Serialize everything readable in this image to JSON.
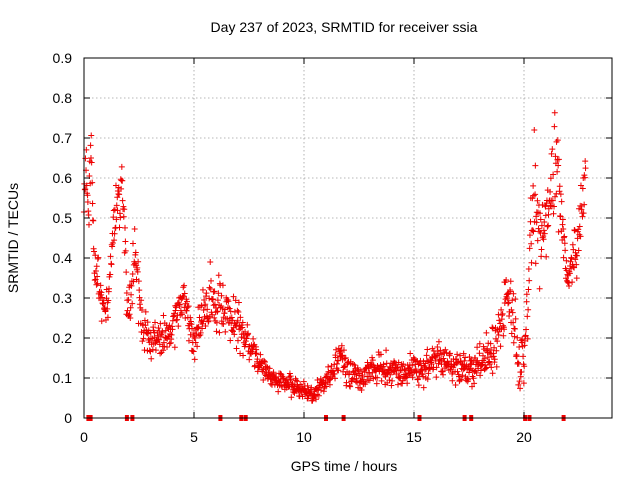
{
  "chart_data": {
    "type": "scatter",
    "title": "Day 237 of 2023, SRMTID for receiver ssia",
    "xlabel": "GPS time / hours",
    "ylabel": "SRMTID / TECUs",
    "xlim": [
      0,
      24
    ],
    "ylim": [
      0,
      0.9
    ],
    "xticks": [
      0,
      5,
      10,
      15,
      20
    ],
    "xtick_labels": [
      "0",
      "5",
      "10",
      "15",
      "20"
    ],
    "yticks": [
      0,
      0.1,
      0.2,
      0.3,
      0.4,
      0.5,
      0.6,
      0.7,
      0.8,
      0.9
    ],
    "ytick_labels": [
      "0",
      "0.1",
      "0.2",
      "0.3",
      "0.4",
      "0.5",
      "0.6",
      "0.7",
      "0.8",
      "0.9"
    ],
    "grid": true,
    "marker": "+",
    "color": "#ee0000",
    "series": [
      {
        "name": "SRMTID",
        "trend": {
          "x": [
            0,
            0.1,
            0.2,
            0.3,
            0.45,
            0.6,
            0.8,
            1.0,
            1.3,
            1.6,
            1.75,
            2.0,
            2.3,
            2.6,
            3.0,
            3.5,
            4.0,
            4.5,
            5.0,
            5.4,
            5.8,
            6.2,
            6.6,
            7.0,
            7.5,
            8.0,
            8.5,
            9.0,
            9.5,
            10.0,
            10.4,
            10.8,
            11.2,
            11.6,
            12.0,
            12.5,
            13.0,
            13.5,
            14.0,
            14.5,
            15.0,
            15.5,
            16.0,
            16.5,
            17.0,
            17.5,
            18.0,
            18.5,
            18.9,
            19.2,
            19.5,
            19.8,
            20.1,
            20.3,
            20.5,
            20.7,
            21.0,
            21.3,
            21.5,
            21.8,
            22.0,
            22.3,
            22.5,
            22.8
          ],
          "y": [
            0.55,
            0.6,
            0.5,
            0.72,
            0.42,
            0.35,
            0.3,
            0.25,
            0.45,
            0.55,
            0.6,
            0.25,
            0.4,
            0.25,
            0.2,
            0.2,
            0.22,
            0.3,
            0.2,
            0.25,
            0.3,
            0.28,
            0.25,
            0.23,
            0.18,
            0.13,
            0.1,
            0.09,
            0.08,
            0.07,
            0.06,
            0.08,
            0.1,
            0.15,
            0.12,
            0.1,
            0.12,
            0.13,
            0.12,
            0.11,
            0.13,
            0.12,
            0.15,
            0.14,
            0.13,
            0.12,
            0.14,
            0.17,
            0.22,
            0.3,
            0.27,
            0.1,
            0.2,
            0.45,
            0.55,
            0.45,
            0.5,
            0.6,
            0.65,
            0.45,
            0.35,
            0.4,
            0.45,
            0.6
          ],
          "spread": [
            0.08,
            0.08,
            0.12,
            0.15,
            0.1,
            0.08,
            0.07,
            0.06,
            0.08,
            0.1,
            0.1,
            0.08,
            0.1,
            0.07,
            0.05,
            0.06,
            0.07,
            0.08,
            0.06,
            0.08,
            0.1,
            0.08,
            0.08,
            0.07,
            0.06,
            0.04,
            0.03,
            0.03,
            0.03,
            0.02,
            0.02,
            0.03,
            0.04,
            0.05,
            0.05,
            0.04,
            0.04,
            0.05,
            0.04,
            0.04,
            0.05,
            0.05,
            0.05,
            0.05,
            0.05,
            0.05,
            0.05,
            0.07,
            0.08,
            0.1,
            0.12,
            0.07,
            0.12,
            0.2,
            0.25,
            0.15,
            0.1,
            0.15,
            0.2,
            0.1,
            0.05,
            0.1,
            0.1,
            0.08
          ]
        },
        "approx_point_count": 1300
      }
    ],
    "zero_markers_x": [
      0.2,
      0.3,
      1.95,
      2.2,
      6.2,
      7.15,
      7.35,
      11.0,
      11.8,
      15.25,
      17.3,
      17.6,
      20.05,
      20.25,
      21.8
    ],
    "annotations": []
  }
}
